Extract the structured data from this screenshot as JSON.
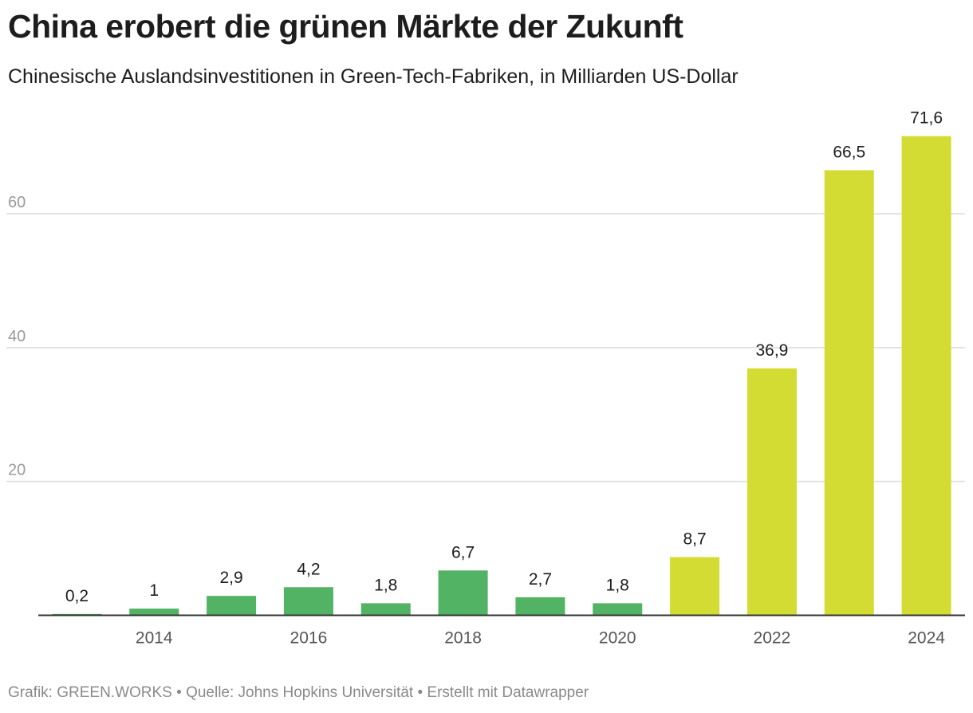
{
  "header": {
    "title": "China erobert die grünen Märkte der Zukunft",
    "subtitle": "Chinesische Auslandsinvestitionen in Green-Tech-Fabriken, in Milliarden US-Dollar"
  },
  "footer": {
    "credit": "Grafik: GREEN.WORKS • Quelle: Johns Hopkins Universität • Erstellt mit Datawrapper"
  },
  "colors": {
    "bar_early": "#52b365",
    "bar_recent": "#d3dc33",
    "grid": "#dcdcdc",
    "axis_text": "#9a9a9a",
    "label_text": "#1d1d1d"
  },
  "chart_data": {
    "type": "bar",
    "title": "China erobert die grünen Märkte der Zukunft",
    "subtitle": "Chinesische Auslandsinvestitionen in Green-Tech-Fabriken, in Milliarden US-Dollar",
    "categories": [
      "2013",
      "2014",
      "2015",
      "2016",
      "2017",
      "2018",
      "2019",
      "2020",
      "2021",
      "2022",
      "2023",
      "2024"
    ],
    "values": [
      0.2,
      1,
      2.9,
      4.2,
      1.8,
      6.7,
      2.7,
      1.8,
      8.7,
      36.9,
      66.5,
      71.6
    ],
    "value_labels": [
      "0,2",
      "1",
      "2,9",
      "4,2",
      "1,8",
      "6,7",
      "2,7",
      "1,8",
      "8,7",
      "36,9",
      "66,5",
      "71,6"
    ],
    "x_tick_labels": [
      "2014",
      "2016",
      "2018",
      "2020",
      "2022",
      "2024"
    ],
    "y_ticks": [
      20,
      40,
      60
    ],
    "ylim": [
      0,
      80
    ],
    "grid": true,
    "highlight_from": "2021"
  }
}
